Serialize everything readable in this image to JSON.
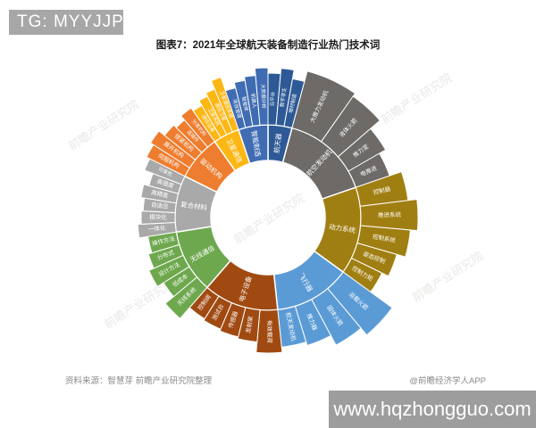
{
  "badges": {
    "tg": "TG: MYYJJPP",
    "url": "www.hqzhongguo.com"
  },
  "title": "图表7：2021年全球航天装备制造行业热门技术词",
  "source": "资料来源：智慧芽 前瞻产业研究院整理",
  "credit": "@前瞻经济学人APP",
  "watermark": "前瞻产业研究院",
  "chart_data": {
    "type": "sunburst",
    "title": "2021年全球航天装备制造行业热门技术词",
    "center": [
      300,
      244
    ],
    "hole_radius": 64,
    "inner_ring_outer_radius": 104,
    "legend_position": "none",
    "grid": false,
    "sections": [
      {
        "label": "航天器",
        "color": "#2d5a96",
        "start": 0,
        "end": 15,
        "children": [
          {
            "label": "云平台",
            "start": 0,
            "end": 5,
            "r": 162
          },
          {
            "label": "数字孪生",
            "start": 5,
            "end": 10,
            "r": 168
          },
          {
            "label": "增材制造",
            "start": 10,
            "end": 15,
            "r": 158
          }
        ]
      },
      {
        "label": "航空发动机",
        "color": "#6d6a67",
        "start": 15,
        "end": 71,
        "children": [
          {
            "label": "大推力发动机",
            "start": 15,
            "end": 35,
            "r": 170
          },
          {
            "label": "液体火箭",
            "start": 35,
            "end": 49,
            "r": 166
          },
          {
            "label": "推力室",
            "start": 49,
            "end": 60,
            "r": 152
          },
          {
            "label": "电推进",
            "start": 60,
            "end": 71,
            "r": 144
          }
        ]
      },
      {
        "label": "动力系统",
        "color": "#a07f12",
        "start": 71,
        "end": 126,
        "children": [
          {
            "label": "控制器",
            "start": 71,
            "end": 83,
            "r": 158
          },
          {
            "label": "推进系统",
            "start": 83,
            "end": 95,
            "r": 168
          },
          {
            "label": "控制系统",
            "start": 95,
            "end": 106,
            "r": 160
          },
          {
            "label": "姿态控制",
            "start": 106,
            "end": 116,
            "r": 150
          },
          {
            "label": "控制力矩",
            "start": 116,
            "end": 126,
            "r": 142
          }
        ]
      },
      {
        "label": "飞行器",
        "color": "#5b9bd5",
        "start": 126,
        "end": 174,
        "children": [
          {
            "label": "运载火箭",
            "start": 126,
            "end": 140,
            "r": 172
          },
          {
            "label": "固体火箭",
            "start": 140,
            "end": 152,
            "r": 162
          },
          {
            "label": "推力器",
            "start": 152,
            "end": 163,
            "r": 150
          },
          {
            "label": "航天发动机",
            "start": 163,
            "end": 174,
            "r": 146
          }
        ]
      },
      {
        "label": "电子设备",
        "color": "#a04a11",
        "start": 174,
        "end": 221,
        "children": [
          {
            "label": "有效载荷",
            "start": 174,
            "end": 185,
            "r": 152
          },
          {
            "label": "发射架",
            "start": 185,
            "end": 194,
            "r": 140
          },
          {
            "label": "传感器",
            "start": 194,
            "end": 203,
            "r": 138
          },
          {
            "label": "测试台",
            "start": 203,
            "end": 212,
            "r": 136
          },
          {
            "label": "控制阀",
            "start": 212,
            "end": 221,
            "r": 134
          }
        ]
      },
      {
        "label": "无线通信",
        "color": "#6ea84e",
        "start": 221,
        "end": 261,
        "children": [
          {
            "label": "天线系统",
            "start": 221,
            "end": 230,
            "r": 150
          },
          {
            "label": "低成本",
            "start": 230,
            "end": 238,
            "r": 138
          },
          {
            "label": "设计方法",
            "start": 238,
            "end": 246,
            "r": 146
          },
          {
            "label": "分布式",
            "start": 246,
            "end": 253,
            "r": 140
          },
          {
            "label": "操作方法",
            "start": 253,
            "end": 261,
            "r": 136
          }
        ]
      },
      {
        "label": "复合材料",
        "color": "#a9a9a9",
        "start": 261,
        "end": 296.5,
        "children": [
          {
            "label": "一体化",
            "start": 261,
            "end": 267,
            "r": 146
          },
          {
            "label": "模块化",
            "start": 267,
            "end": 273,
            "r": 142
          },
          {
            "label": "自适应",
            "start": 273,
            "end": 279,
            "r": 140
          },
          {
            "label": "高精度",
            "start": 279,
            "end": 285,
            "r": 144
          },
          {
            "label": "高强度",
            "start": 285,
            "end": 291,
            "r": 138
          },
          {
            "label": "可靠性",
            "start": 291,
            "end": 296.5,
            "r": 148
          }
        ]
      },
      {
        "label": "驱动机构",
        "color": "#ee7d2f",
        "start": 296.5,
        "end": 325,
        "children": [
          {
            "label": "伺服机构",
            "start": 296.5,
            "end": 302.5,
            "r": 152
          },
          {
            "label": "展开机构",
            "start": 302.5,
            "end": 308.5,
            "r": 156
          },
          {
            "label": "锁紧机构",
            "start": 308.5,
            "end": 314.5,
            "r": 148
          },
          {
            "label": "连接件",
            "start": 314.5,
            "end": 319.5,
            "r": 144
          },
          {
            "label": "分离机构",
            "start": 319.5,
            "end": 325,
            "r": 150
          }
        ]
      },
      {
        "label": "卫星通信",
        "color": "#fdb714",
        "start": 325,
        "end": 341.5,
        "children": [
          {
            "label": "通信设备",
            "start": 325,
            "end": 329.5,
            "r": 146
          },
          {
            "label": "卫星系统",
            "start": 329.5,
            "end": 333.5,
            "r": 152
          },
          {
            "label": "通信卫星",
            "start": 333.5,
            "end": 337.5,
            "r": 156
          },
          {
            "label": "卫星通信系统",
            "start": 337.5,
            "end": 341.5,
            "r": 166
          }
        ]
      },
      {
        "label": "智能制造",
        "color": "#3f6cb3",
        "start": 341.5,
        "end": 360,
        "children": [
          {
            "label": "项目管理",
            "start": 341.5,
            "end": 346,
            "r": 150
          },
          {
            "label": "智能体",
            "start": 346,
            "end": 350.5,
            "r": 156
          },
          {
            "label": "机器人",
            "start": 350.5,
            "end": 355,
            "r": 160
          },
          {
            "label": "大数据分析",
            "start": 355,
            "end": 360,
            "r": 168
          }
        ]
      }
    ]
  }
}
